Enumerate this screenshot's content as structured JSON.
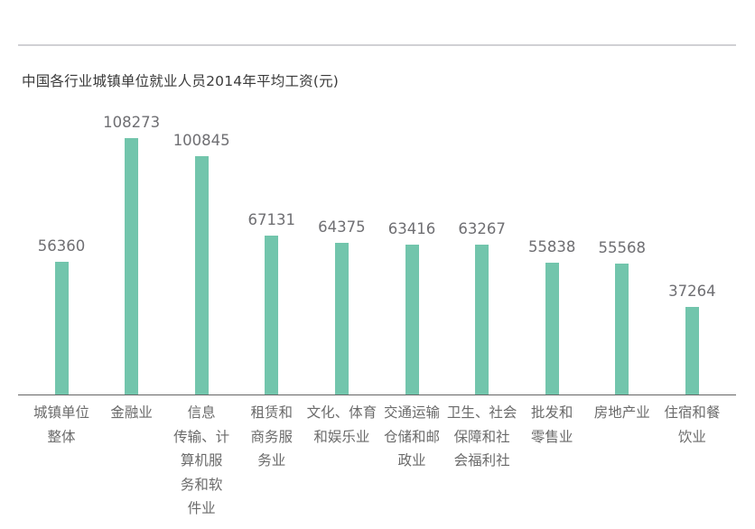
{
  "chart_data": {
    "type": "bar",
    "title": "中国各行业城镇单位就业人员2014年平均工资(元)",
    "xlabel": "",
    "ylabel": "",
    "ylim": [
      0,
      110000
    ],
    "grid": false,
    "legend": null,
    "color": "#72c5ac",
    "categories": [
      "城镇单位整体",
      "金融业",
      "信息传输、计算机服务和软件业",
      "租赁和商务服务业",
      "文化、体育和娱乐业",
      "交通运输仓储和邮政业",
      "卫生、社会保障和社会福利社",
      "批发和零售业",
      "房地产业",
      "住宿和餐饮业"
    ],
    "category_lines": [
      [
        "城镇单位",
        "整体"
      ],
      [
        "金融业"
      ],
      [
        "信息",
        "传输、计",
        "算机服",
        "务和软",
        "件业"
      ],
      [
        "租赁和",
        "商务服",
        "务业"
      ],
      [
        "文化、体育",
        "和娱乐业"
      ],
      [
        "交通运输",
        "仓储和邮",
        "政业"
      ],
      [
        "卫生、社会",
        "保障和社",
        "会福利社"
      ],
      [
        "批发和",
        "零售业"
      ],
      [
        "房地产业"
      ],
      [
        "住宿和餐",
        "饮业"
      ]
    ],
    "values": [
      56360,
      108273,
      100845,
      67131,
      64375,
      63416,
      63267,
      55838,
      55568,
      37264
    ]
  }
}
